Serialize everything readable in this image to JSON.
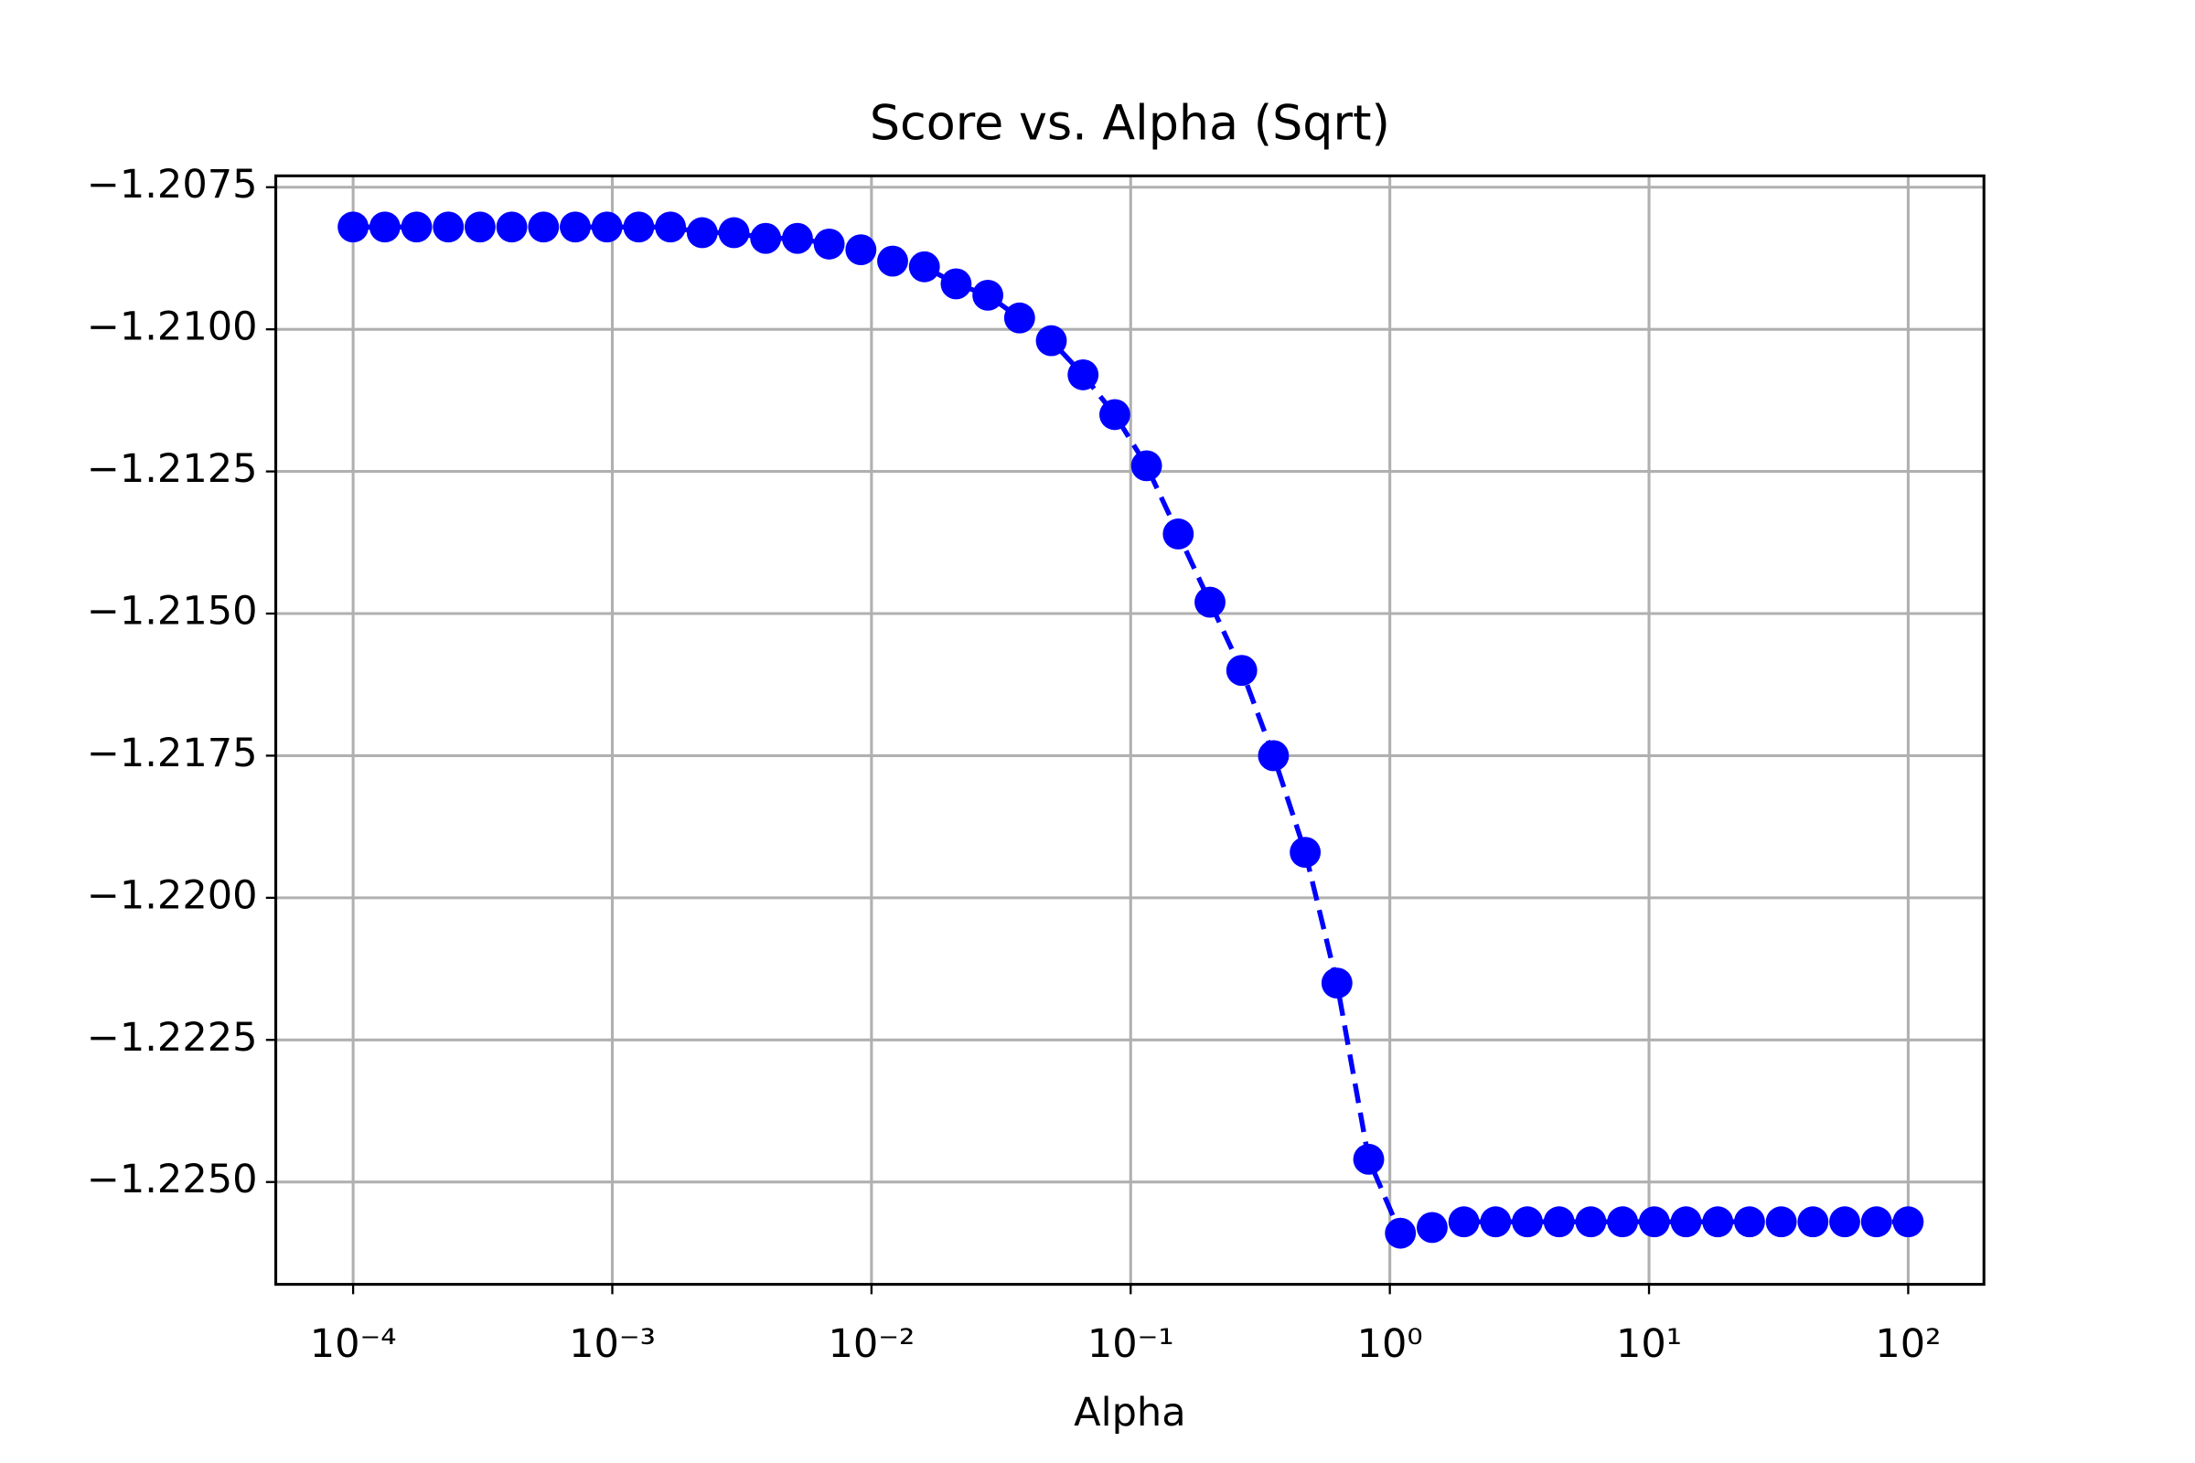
{
  "chart_data": {
    "type": "line",
    "title": "Score vs. Alpha (Sqrt)",
    "x_label": "Alpha",
    "xscale": "log",
    "grid": true,
    "linestyle": "dashed",
    "marker": "circle",
    "x": [
      0.0001,
      0.00013257,
      0.00017575,
      0.000233,
      0.00030888,
      0.00040949,
      0.00054287,
      0.00071969,
      0.0009541,
      0.0012649,
      0.0016768,
      0.002223,
      0.0029471,
      0.0039069,
      0.0051795,
      0.0068665,
      0.009103,
      0.012068,
      0.015999,
      0.02121,
      0.028118,
      0.037276,
      0.049417,
      0.065513,
      0.086851,
      0.11514,
      0.15264,
      0.20236,
      0.26827,
      0.35565,
      0.47149,
      0.62506,
      0.82864,
      1.0985,
      1.4563,
      1.9307,
      2.5595,
      3.3932,
      4.4984,
      5.9636,
      7.906,
      10.481,
      13.895,
      18.421,
      24.421,
      32.375,
      42.919,
      56.899,
      75.431,
      100
    ],
    "series": [
      {
        "color": "#0000ff",
        "values": [
          -1.2082,
          -1.2082,
          -1.2082,
          -1.2082,
          -1.2082,
          -1.2082,
          -1.2082,
          -1.2082,
          -1.2082,
          -1.2082,
          -1.2082,
          -1.2083,
          -1.2083,
          -1.2084,
          -1.2084,
          -1.2085,
          -1.2086,
          -1.2088,
          -1.2089,
          -1.2092,
          -1.2094,
          -1.2098,
          -1.2102,
          -1.2108,
          -1.2115,
          -1.2124,
          -1.2136,
          -1.2148,
          -1.216,
          -1.2175,
          -1.2192,
          -1.2215,
          -1.2246,
          -1.2259,
          -1.2258,
          -1.2257,
          -1.2257,
          -1.2257,
          -1.2257,
          -1.2257,
          -1.2257,
          -1.2257,
          -1.2257,
          -1.2257,
          -1.2257,
          -1.2257,
          -1.2257,
          -1.2257,
          -1.2257,
          -1.2257
        ]
      }
    ],
    "xlim": [
      5.03e-05,
      196
    ],
    "ylim": [
      -1.2268,
      -1.2073
    ],
    "xticks": [
      {
        "value": 0.0001,
        "label": "10⁻⁴"
      },
      {
        "value": 0.001,
        "label": "10⁻³"
      },
      {
        "value": 0.01,
        "label": "10⁻²"
      },
      {
        "value": 0.1,
        "label": "10⁻¹"
      },
      {
        "value": 1,
        "label": "10⁰"
      },
      {
        "value": 10,
        "label": "10¹"
      },
      {
        "value": 100,
        "label": "10²"
      }
    ],
    "yticks": [
      {
        "value": -1.2075,
        "label": "−1.2075"
      },
      {
        "value": -1.21,
        "label": "−1.2100"
      },
      {
        "value": -1.2125,
        "label": "−1.2125"
      },
      {
        "value": -1.215,
        "label": "−1.2150"
      },
      {
        "value": -1.2175,
        "label": "−1.2175"
      },
      {
        "value": -1.22,
        "label": "−1.2200"
      },
      {
        "value": -1.2225,
        "label": "−1.2225"
      },
      {
        "value": -1.225,
        "label": "−1.2250"
      }
    ]
  }
}
